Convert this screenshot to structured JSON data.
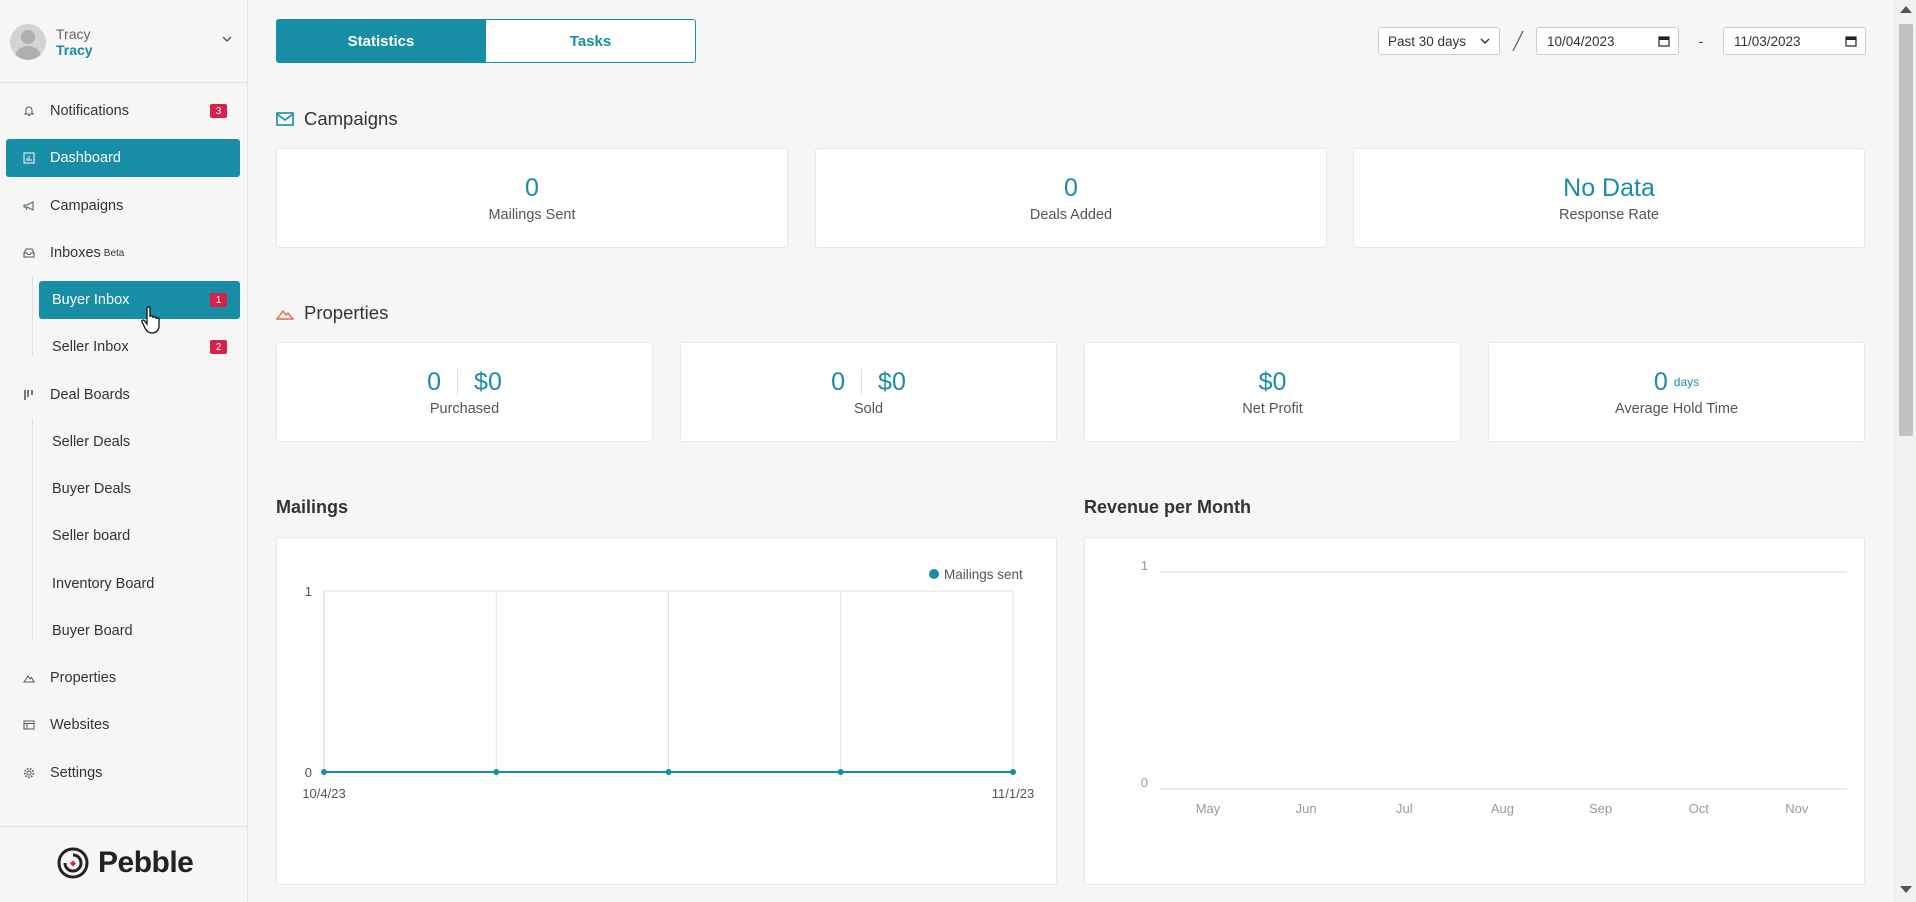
{
  "user": {
    "name_top": "Tracy",
    "name_bottom": "Tracy"
  },
  "nav": {
    "notifications": {
      "label": "Notifications",
      "badge": "3"
    },
    "dashboard": {
      "label": "Dashboard"
    },
    "campaigns": {
      "label": "Campaigns"
    },
    "inboxes": {
      "label": "Inboxes",
      "beta": "Beta"
    },
    "buyer_inbox": {
      "label": "Buyer Inbox",
      "badge": "1"
    },
    "seller_inbox": {
      "label": "Seller Inbox",
      "badge": "2"
    },
    "deal_boards": {
      "label": "Deal Boards"
    },
    "seller_deals": {
      "label": "Seller Deals"
    },
    "buyer_deals": {
      "label": "Buyer Deals"
    },
    "seller_board": {
      "label": "Seller board"
    },
    "inventory_board": {
      "label": "Inventory Board"
    },
    "buyer_board": {
      "label": "Buyer Board"
    },
    "properties": {
      "label": "Properties"
    },
    "websites": {
      "label": "Websites"
    },
    "settings": {
      "label": "Settings"
    }
  },
  "brand": {
    "name": "Pebble",
    "accent": "#178ea5",
    "badge_color": "#d6214b"
  },
  "tabs": {
    "statistics": "Statistics",
    "tasks": "Tasks"
  },
  "filters": {
    "range": "Past 30 days",
    "start_date": "10/04/2023",
    "separator": "-",
    "end_date": "11/03/2023"
  },
  "campaigns": {
    "title": "Campaigns",
    "mailings_sent": {
      "value": "0",
      "label": "Mailings Sent"
    },
    "deals_added": {
      "value": "0",
      "label": "Deals Added"
    },
    "response_rate": {
      "value": "No Data",
      "label": "Response Rate"
    }
  },
  "properties": {
    "title": "Properties",
    "purchased": {
      "count": "0",
      "amount": "$0",
      "label": "Purchased"
    },
    "sold": {
      "count": "0",
      "amount": "$0",
      "label": "Sold"
    },
    "net_profit": {
      "value": "$0",
      "label": "Net Profit"
    },
    "average_hold_time": {
      "value": "0",
      "unit": "days",
      "label": "Average Hold Time"
    }
  },
  "mailings_chart": {
    "title": "Mailings"
  },
  "revenue_chart": {
    "title": "Revenue per Month"
  },
  "chart_data": [
    {
      "type": "line",
      "title": "Mailings",
      "series": [
        {
          "name": "Mailings sent",
          "values": [
            0,
            0,
            0,
            0,
            0
          ]
        }
      ],
      "x": [
        "10/4/23",
        "",
        "",
        "",
        "11/1/23"
      ],
      "x_tick_labels": [
        "10/4/23",
        "11/1/23"
      ],
      "y_ticks": [
        "0",
        "1"
      ],
      "ylim": [
        0,
        1
      ],
      "legend": "top-right",
      "color": "#178ea5"
    },
    {
      "type": "line",
      "title": "Revenue per Month",
      "categories": [
        "May",
        "Jun",
        "Jul",
        "Aug",
        "Sep",
        "Oct",
        "Nov"
      ],
      "y_ticks": [
        "0",
        "1"
      ],
      "ylim": [
        0,
        1
      ],
      "series": []
    }
  ]
}
